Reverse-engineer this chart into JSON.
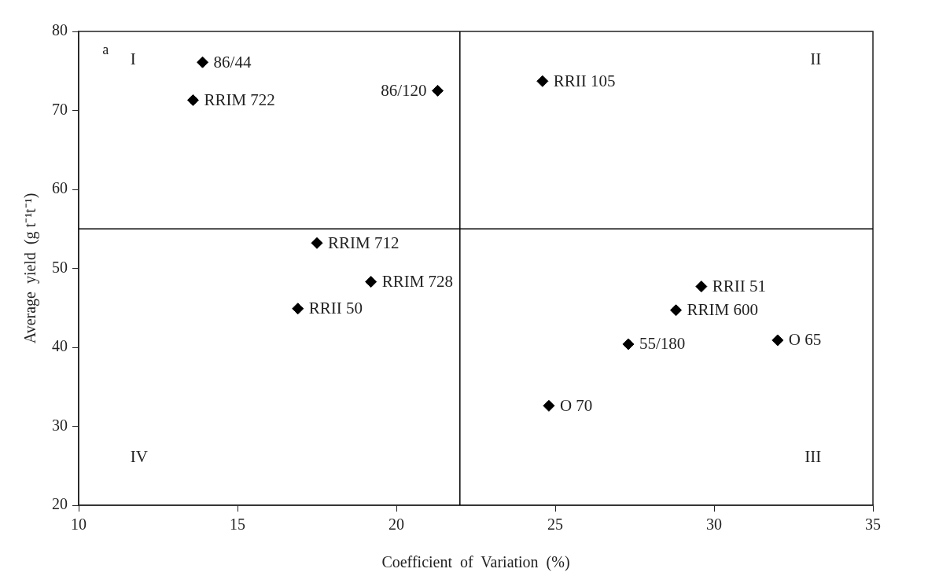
{
  "chart_data": {
    "type": "scatter",
    "xlabel": "Coefficient  of  Variation  (%)",
    "ylabel": "Average  yield  (g t⁻¹t⁻¹)",
    "x": [
      13.9,
      13.6,
      21.3,
      24.6,
      17.5,
      19.2,
      16.9,
      29.6,
      28.8,
      27.3,
      32.0,
      24.8
    ],
    "series": [
      {
        "color": "#000000",
        "values": [
          76.1,
          71.3,
          72.5,
          73.7,
          53.2,
          48.3,
          44.9,
          47.7,
          44.7,
          40.4,
          40.9,
          32.6
        ]
      }
    ],
    "xlim": [
      10,
      35
    ],
    "xticks": [
      10,
      15,
      20,
      25,
      30,
      35
    ],
    "ylim": [
      20,
      80
    ],
    "yticks": [
      20,
      30,
      40,
      50,
      60,
      70,
      80
    ],
    "grid": false,
    "legend": false,
    "marker": "diamond",
    "ref_lines": [
      {
        "axis": "x",
        "value": 22,
        "color": "#000000"
      },
      {
        "axis": "y",
        "value": 55,
        "color": "#000000"
      }
    ],
    "annotations": [
      "a",
      "I",
      "II",
      "III",
      "IV",
      {
        "text": "86/44",
        "x": 13.9,
        "y": 76.1
      },
      {
        "text": "RRIM 722",
        "x": 13.6,
        "y": 71.3
      },
      {
        "text": "86/120",
        "x": 21.3,
        "y": 72.5
      },
      {
        "text": "RRII 105",
        "x": 24.6,
        "y": 73.7
      },
      {
        "text": "RRIM 712",
        "x": 17.5,
        "y": 53.2
      },
      {
        "text": "RRIM 728",
        "x": 19.2,
        "y": 48.3
      },
      {
        "text": "RRII 50",
        "x": 16.9,
        "y": 44.9
      },
      {
        "text": "RRII 51",
        "x": 29.6,
        "y": 47.7
      },
      {
        "text": "RRIM 600",
        "x": 28.8,
        "y": 44.7
      },
      {
        "text": "55/180",
        "x": 27.3,
        "y": 40.4
      },
      {
        "text": "O 65",
        "x": 32.0,
        "y": 40.9
      },
      {
        "text": "O 70",
        "x": 24.8,
        "y": 32.6
      }
    ]
  }
}
